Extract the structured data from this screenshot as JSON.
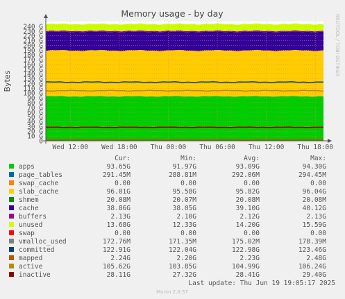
{
  "side_label": "RRDTOOL / TOBI OETIKER",
  "footer": "Munin 2.0.57",
  "colors": {
    "background": "#f0f0f0",
    "plot_bg": "#ffffff",
    "grid": "#e08080"
  },
  "legend_headers": {
    "cur": "Cur:",
    "min": "Min:",
    "avg": "Avg:",
    "max": "Max:"
  },
  "last_update": "Last update: Thu Jun 19 19:05:17 2025",
  "legend": [
    {
      "name": "apps",
      "color": "#00cc00",
      "cur": "93.65G",
      "min": "91.97G",
      "avg": "93.09G",
      "max": "94.30G"
    },
    {
      "name": "page_tables",
      "color": "#0066b3",
      "cur": "291.45M",
      "min": "288.81M",
      "avg": "292.06M",
      "max": "294.45M"
    },
    {
      "name": "swap_cache",
      "color": "#ff8000",
      "cur": "0.00",
      "min": "0.00",
      "avg": "0.00",
      "max": "0.00"
    },
    {
      "name": "slab_cache",
      "color": "#ffcc00",
      "cur": "96.01G",
      "min": "95.58G",
      "avg": "95.82G",
      "max": "96.04G"
    },
    {
      "name": "shmem",
      "color": "#008f00",
      "cur": "20.08M",
      "min": "20.07M",
      "avg": "20.08M",
      "max": "20.08M"
    },
    {
      "name": "cache",
      "color": "#330099",
      "cur": "38.86G",
      "min": "38.05G",
      "avg": "39.10G",
      "max": "40.12G"
    },
    {
      "name": "buffers",
      "color": "#990099",
      "cur": "2.13G",
      "min": "2.10G",
      "avg": "2.12G",
      "max": "2.13G"
    },
    {
      "name": "unused",
      "color": "#ccff00",
      "cur": "13.68G",
      "min": "12.33G",
      "avg": "14.20G",
      "max": "15.59G"
    },
    {
      "name": "swap",
      "color": "#ff0000",
      "cur": "0.00",
      "min": "0.00",
      "avg": "0.00",
      "max": "0.00"
    },
    {
      "name": "vmalloc_used",
      "color": "#808080",
      "cur": "172.76M",
      "min": "171.35M",
      "avg": "175.02M",
      "max": "178.39M"
    },
    {
      "name": "committed",
      "color": "#00446b",
      "cur": "122.91G",
      "min": "122.04G",
      "avg": "122.98G",
      "max": "123.46G"
    },
    {
      "name": "mapped",
      "color": "#b35a00",
      "cur": "2.24G",
      "min": "2.20G",
      "avg": "2.23G",
      "max": "2.48G"
    },
    {
      "name": "active",
      "color": "#b38f00",
      "cur": "105.62G",
      "min": "103.85G",
      "avg": "104.99G",
      "max": "106.24G"
    },
    {
      "name": "inactive",
      "color": "#8f0000",
      "cur": "28.11G",
      "min": "27.32G",
      "avg": "28.41G",
      "max": "29.40G"
    }
  ],
  "chart_data": {
    "type": "area",
    "title": "Memory usage - by day",
    "ylabel": "Bytes",
    "ylim": [
      0,
      250
    ],
    "y_unit": "G",
    "yticks": [
      0,
      10,
      20,
      30,
      40,
      50,
      60,
      70,
      80,
      90,
      100,
      110,
      120,
      130,
      140,
      150,
      160,
      170,
      180,
      190,
      200,
      210,
      220,
      230,
      240
    ],
    "ytick_labels": [
      "0",
      "10 G",
      "20 G",
      "30 G",
      "40 G",
      "50 G",
      "60 G",
      "70 G",
      "80 G",
      "90 G",
      "100 G",
      "110 G",
      "120 G",
      "130 G",
      "140 G",
      "150 G",
      "160 G",
      "170 G",
      "180 G",
      "190 G",
      "200 G",
      "210 G",
      "220 G",
      "230 G",
      "240 G"
    ],
    "xlim": [
      "Wed 09:05",
      "Thu 19:05"
    ],
    "xtick_hours": [
      3,
      9,
      15,
      21,
      27,
      33
    ],
    "xtick_labels": [
      "Wed 12:00",
      "Wed 18:00",
      "Thu 00:00",
      "Thu 06:00",
      "Thu 12:00",
      "Thu 18:00"
    ],
    "grid": true,
    "stacked_series": [
      {
        "name": "apps",
        "color": "#00cc00",
        "value": 93.09
      },
      {
        "name": "page_tables",
        "color": "#0066b3",
        "value": 0.29
      },
      {
        "name": "swap_cache",
        "color": "#ff8000",
        "value": 0
      },
      {
        "name": "slab_cache",
        "color": "#ffcc00",
        "value": 95.82
      },
      {
        "name": "shmem",
        "color": "#008f00",
        "value": 0.02
      },
      {
        "name": "cache",
        "color": "#330099",
        "value": 39.1
      },
      {
        "name": "buffers",
        "color": "#990099",
        "value": 2.12
      },
      {
        "name": "unused",
        "color": "#ccff00",
        "value": 14.2
      }
    ],
    "line_series": [
      {
        "name": "committed",
        "color": "#00446b",
        "value": 122.98
      },
      {
        "name": "active",
        "color": "#b38f00",
        "value": 104.99
      },
      {
        "name": "inactive",
        "color": "#8f0000",
        "value": 28.41
      },
      {
        "name": "mapped",
        "color": "#b35a00",
        "value": 2.23
      }
    ]
  }
}
